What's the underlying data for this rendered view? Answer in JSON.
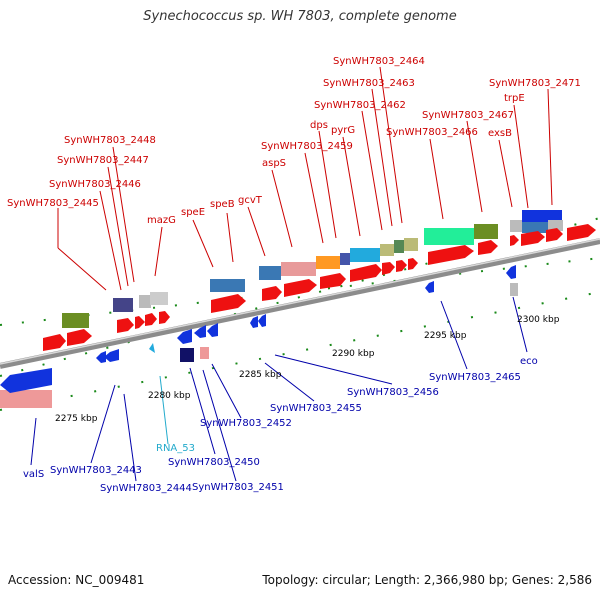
{
  "title": "Synechococcus sp. WH 7803, complete genome",
  "footer": {
    "accession": "Accession: NC_009481",
    "summary": "Topology: circular; Length: 2,366,980 bp; Genes: 2,586"
  },
  "colors": {
    "top_label": "#cc0000",
    "bottom_label": "#0000aa",
    "rna_label": "#22aacc",
    "backbone": "#999999",
    "forward_gene": "#ee1111",
    "reverse_gene": "#1133dd"
  },
  "ticks": [
    "2275 kbp",
    "2280 kbp",
    "2285 kbp",
    "2290 kbp",
    "2295 kbp",
    "2300 kbp"
  ],
  "top_labels": [
    "SynWH7803_2464",
    "SynWH7803_2463",
    "SynWH7803_2471",
    "SynWH7803_2462",
    "trpE",
    "SynWH7803_2467",
    "dps",
    "pyrG",
    "SynWH7803_2466",
    "exsB",
    "SynWH7803_2448",
    "SynWH7803_2459",
    "SynWH7803_2447",
    "aspS",
    "SynWH7803_2446",
    "gcvT",
    "SynWH7803_2445",
    "speB",
    "speE",
    "mazG"
  ],
  "bottom_labels": [
    "eco",
    "SynWH7803_2465",
    "SynWH7803_2456",
    "SynWH7803_2455",
    "SynWH7803_2452",
    "RNA_53",
    "SynWH7803_2450",
    "SynWH7803_2443",
    "SynWH7803_2451",
    "SynWH7803_2444",
    "valS"
  ]
}
